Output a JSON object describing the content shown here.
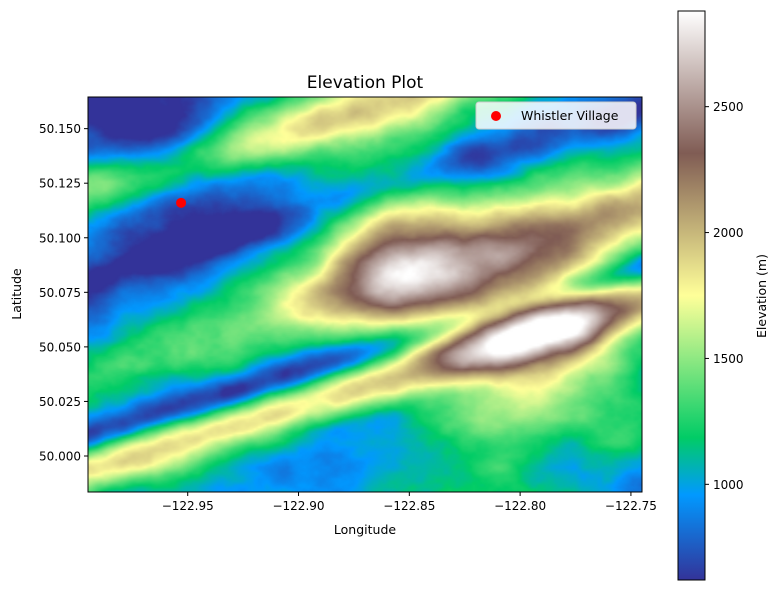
{
  "chart_data": {
    "type": "heatmap",
    "title": "Elevation Plot",
    "xlabel": "Longitude",
    "ylabel": "Latitude",
    "xlim": [
      -122.995,
      -122.745
    ],
    "ylim": [
      49.9835,
      50.1645
    ],
    "xticks": [
      -122.95,
      -122.9,
      -122.85,
      -122.8,
      -122.75
    ],
    "xtick_labels": [
      "−122.95",
      "−122.90",
      "−122.85",
      "−122.80",
      "−122.75"
    ],
    "yticks": [
      50.0,
      50.025,
      50.05,
      50.075,
      50.1,
      50.125,
      50.15
    ],
    "ytick_labels": [
      "50.000",
      "50.025",
      "50.050",
      "50.075",
      "50.100",
      "50.125",
      "50.150"
    ],
    "colorbar": {
      "label": "Elevation (m)",
      "range": [
        620,
        2880
      ],
      "ticks": [
        1000,
        1500,
        2000,
        2500
      ],
      "tick_labels": [
        "1000",
        "1500",
        "2000",
        "2500"
      ],
      "colormap": "terrain"
    },
    "markers": [
      {
        "label": "Whistler Village",
        "lon": -122.953,
        "lat": 50.116,
        "color": "#ff0000"
      }
    ],
    "legend": {
      "position": "top-right",
      "entries": [
        "Whistler Village"
      ]
    }
  }
}
